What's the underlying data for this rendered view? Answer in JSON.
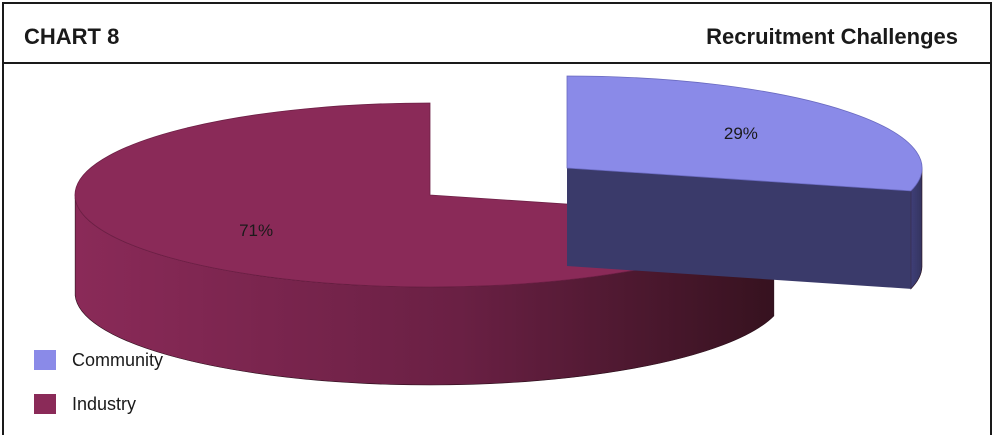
{
  "header": {
    "chart_label": "CHART 8",
    "title": "Recruitment Challenges"
  },
  "chart_data": {
    "type": "pie",
    "title": "Recruitment Challenges",
    "categories": [
      "Community",
      "Industry"
    ],
    "values": [
      29,
      71
    ],
    "value_labels": [
      "29%",
      "71%"
    ],
    "colors": [
      "#8a8ae8",
      "#8a2a58"
    ],
    "style": "3d-exploded",
    "legend_position": "bottom-left"
  },
  "legend": {
    "items": [
      {
        "label": "Community",
        "color": "#8a8ae8"
      },
      {
        "label": "Industry",
        "color": "#8a2a58"
      }
    ]
  }
}
